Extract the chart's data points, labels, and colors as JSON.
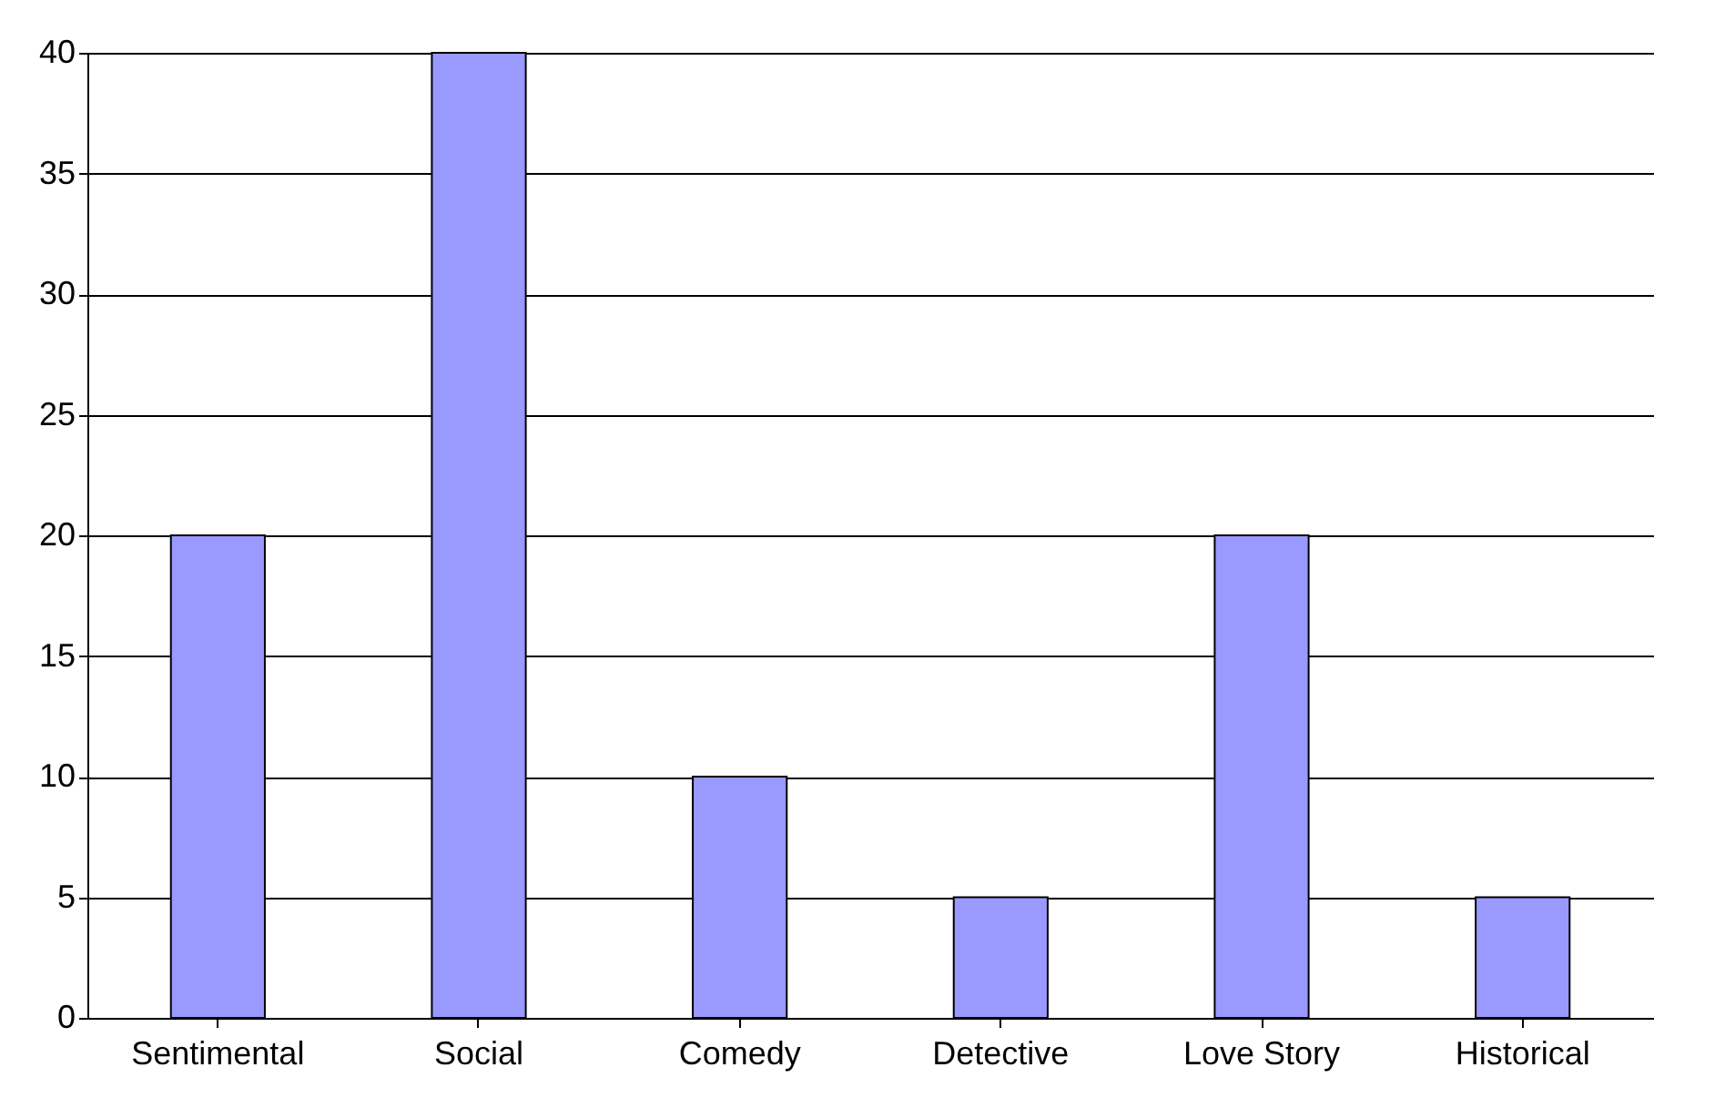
{
  "chart_data": {
    "type": "bar",
    "categories": [
      "Sentimental",
      "Social",
      "Comedy",
      "Detective",
      "Love Story",
      "Historical"
    ],
    "values": [
      20,
      40,
      10,
      5,
      20,
      5
    ],
    "color": "#9999ff",
    "ylim": [
      0,
      40
    ],
    "yticks": [
      0,
      5,
      10,
      15,
      20,
      25,
      30,
      35,
      40
    ],
    "grid": "y"
  }
}
